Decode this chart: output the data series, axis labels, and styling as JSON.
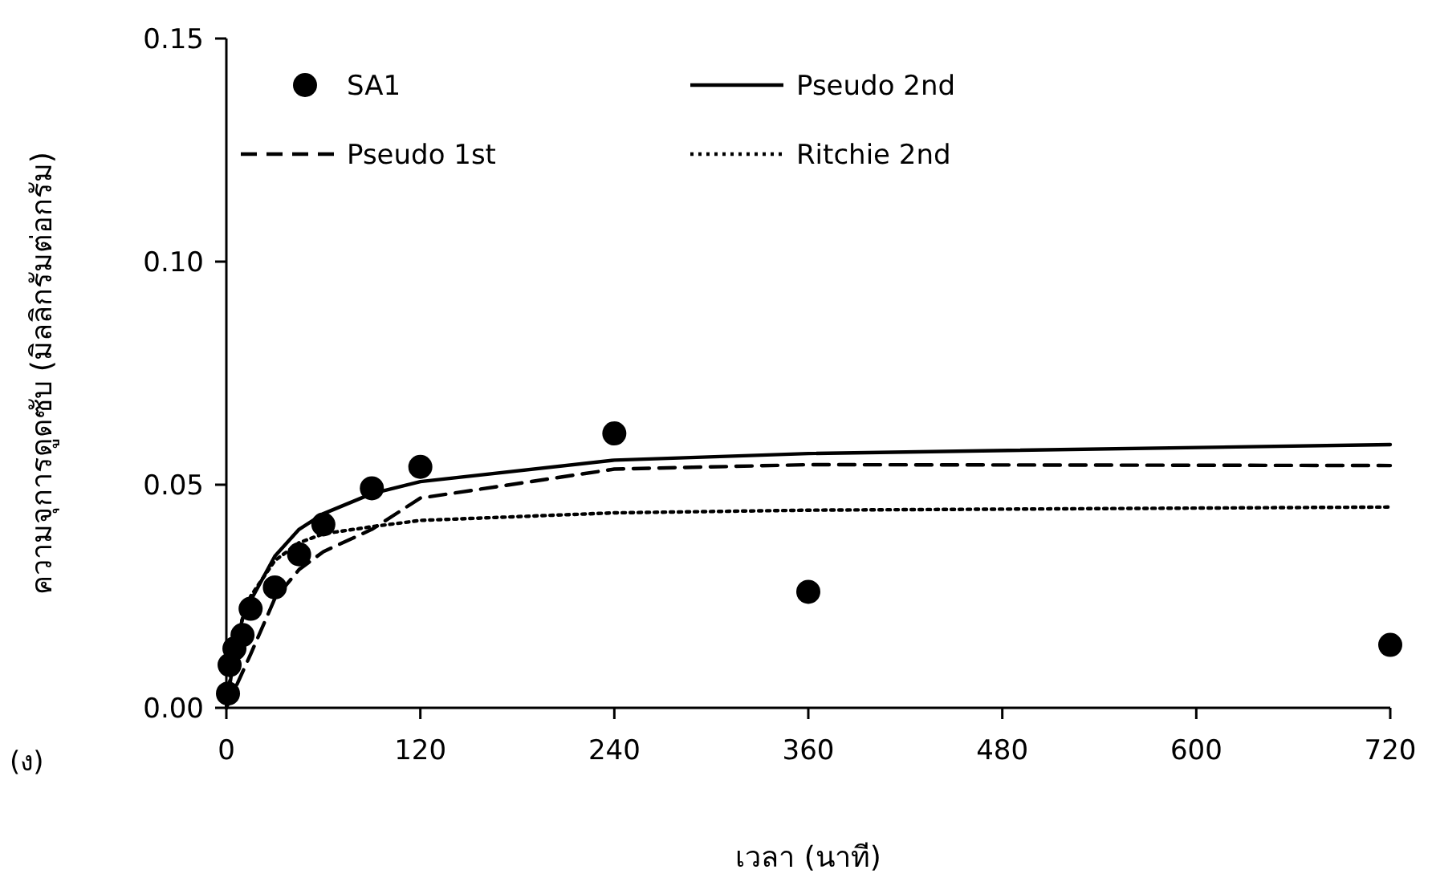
{
  "chart_data": {
    "type": "scatter",
    "xlabel": "เวลา (นาที)",
    "ylabel": "ความจุการดูดซับ (มิลลิกรัมต่อกรัม)",
    "annotations": [
      "(ง)"
    ],
    "xlim": [
      0,
      720
    ],
    "xticks": [
      0,
      120,
      240,
      360,
      480,
      600,
      720
    ],
    "ylim": [
      0,
      0.15
    ],
    "yticks": [
      {
        "value": 0,
        "label": "0.00"
      },
      {
        "value": 0.05,
        "label": "0.05"
      },
      {
        "value": 0.1,
        "label": "0.10"
      },
      {
        "value": 0.15,
        "label": "0.15"
      }
    ],
    "grid": false,
    "legend": "top left",
    "series": [
      {
        "name": "SA1",
        "type": "scatter",
        "marker": "circle",
        "color": "#000000",
        "x": [
          1,
          2,
          5,
          10,
          15,
          30,
          45,
          60,
          90,
          120,
          240,
          360,
          720
        ],
        "values": [
          0.0032,
          0.0096,
          0.0133,
          0.0163,
          0.0222,
          0.027,
          0.0344,
          0.0411,
          0.0492,
          0.054,
          0.0615,
          0.026,
          0.0141
        ]
      },
      {
        "name": "Pseudo 2nd",
        "type": "line",
        "line_style": "solid",
        "color": "#000000",
        "x": [
          0,
          5,
          10,
          15,
          30,
          45,
          60,
          90,
          120,
          240,
          360,
          720
        ],
        "values": [
          0,
          0.012,
          0.02,
          0.024,
          0.034,
          0.04,
          0.0435,
          0.048,
          0.0507,
          0.0555,
          0.057,
          0.059
        ]
      },
      {
        "name": "Pseudo 1st",
        "type": "line",
        "line_style": "dashed",
        "color": "#000000",
        "x": [
          0,
          5,
          10,
          15,
          30,
          45,
          60,
          90,
          120,
          240,
          360,
          720
        ],
        "values": [
          0,
          0.004,
          0.008,
          0.012,
          0.0245,
          0.031,
          0.035,
          0.04,
          0.047,
          0.0535,
          0.0545,
          0.0543
        ]
      },
      {
        "name": "Ritchie 2nd",
        "type": "line",
        "line_style": "dotted",
        "color": "#000000",
        "x": [
          0,
          5,
          10,
          15,
          30,
          45,
          60,
          90,
          120,
          240,
          360,
          720
        ],
        "values": [
          0,
          0.014,
          0.02,
          0.025,
          0.033,
          0.037,
          0.039,
          0.0406,
          0.042,
          0.0437,
          0.0443,
          0.045
        ]
      }
    ]
  }
}
